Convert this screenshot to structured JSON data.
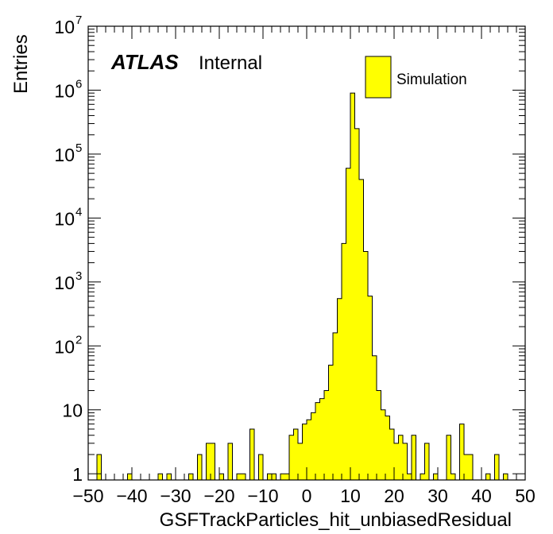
{
  "chart_data": {
    "type": "bar",
    "title": "",
    "xlabel": "GSFTrackParticles_hit_unbiasedResidual",
    "ylabel": "Entries",
    "xlim": [
      -50,
      50
    ],
    "ylim": [
      0.8,
      10000000
    ],
    "yscale": "log",
    "x_ticks": [
      -50,
      -40,
      -30,
      -20,
      -10,
      0,
      10,
      20,
      30,
      40,
      50
    ],
    "x_tick_labels": [
      "−50",
      "−40",
      "−30",
      "−20",
      "−10",
      "0",
      "10",
      "20",
      "30",
      "40",
      "50"
    ],
    "y_ticks": [
      {
        "base": "10",
        "exp": "7",
        "value": 10000000
      },
      {
        "base": "10",
        "exp": "6",
        "value": 1000000
      },
      {
        "base": "10",
        "exp": "5",
        "value": 100000
      },
      {
        "base": "10",
        "exp": "4",
        "value": 10000
      },
      {
        "base": "10",
        "exp": "3",
        "value": 1000
      },
      {
        "base": "10",
        "exp": "2",
        "value": 100
      },
      {
        "base": "10",
        "exp": "",
        "value": 10
      },
      {
        "base": "1",
        "exp": "",
        "value": 1
      }
    ],
    "bin_edges_range": [
      -50,
      50
    ],
    "bin_width": 1,
    "series": [
      {
        "name": "Simulation",
        "color": "#ffff00",
        "edge_color": "#000000",
        "values": [
          0,
          0,
          2,
          0,
          0,
          0,
          0,
          0,
          0,
          1,
          0,
          0,
          0,
          0,
          0,
          0,
          1,
          0,
          1,
          0,
          0,
          0,
          0,
          1,
          0,
          2,
          0,
          3,
          3,
          0,
          1,
          0,
          3,
          0,
          1,
          1,
          0,
          5,
          0,
          2,
          0,
          1,
          1,
          0,
          1,
          1,
          4,
          5,
          3,
          6,
          7,
          9,
          13,
          15,
          20,
          50,
          160,
          550,
          4000,
          60000,
          900000,
          250000,
          40000,
          3000,
          600,
          70,
          20,
          10,
          8,
          5,
          3,
          4,
          3,
          1,
          4,
          0,
          1,
          3,
          0,
          1,
          0,
          0,
          4,
          1,
          0,
          6,
          2,
          2,
          0,
          0,
          0,
          1,
          0,
          2,
          0,
          1,
          0,
          0,
          0,
          0
        ]
      }
    ],
    "grid": false,
    "legend_position": "top-right",
    "annotations": {
      "atlas_bold": "ATLAS",
      "atlas_status": "Internal"
    }
  },
  "colors": {
    "fill": "#ffff00",
    "edge": "#000000",
    "background": "#ffffff"
  }
}
